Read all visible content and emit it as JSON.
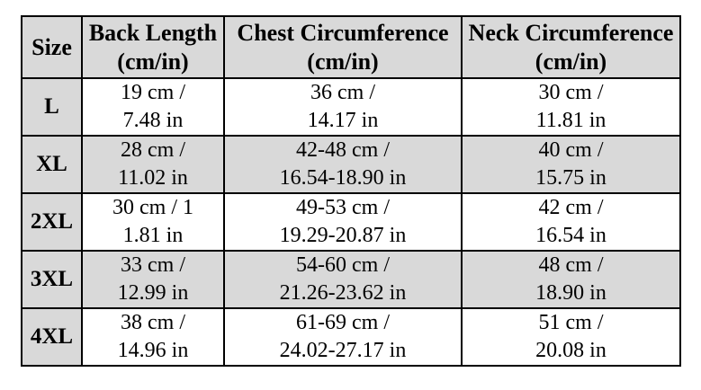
{
  "table": {
    "columns": [
      {
        "label": "Size",
        "unit": ""
      },
      {
        "label": "Back Length",
        "unit": "(cm/in)"
      },
      {
        "label": "Chest Circumference",
        "unit": "(cm/in)"
      },
      {
        "label": "Neck Circumference",
        "unit": "(cm/in)"
      }
    ],
    "rows": [
      {
        "size": "L",
        "back": {
          "line1": "19 cm /",
          "line2": "7.48 in"
        },
        "chest": {
          "line1": "36 cm /",
          "line2": "14.17 in"
        },
        "neck": {
          "line1": "30 cm /",
          "line2": "11.81 in"
        }
      },
      {
        "size": "XL",
        "back": {
          "line1": "28 cm /",
          "line2": "11.02 in"
        },
        "chest": {
          "line1": "42-48 cm /",
          "line2": "16.54-18.90 in"
        },
        "neck": {
          "line1": "40 cm /",
          "line2": "15.75 in"
        }
      },
      {
        "size": "2XL",
        "back": {
          "line1": "30 cm / 1",
          "line2": "1.81 in"
        },
        "chest": {
          "line1": "49-53 cm /",
          "line2": "19.29-20.87 in"
        },
        "neck": {
          "line1": "42 cm /",
          "line2": "16.54 in"
        }
      },
      {
        "size": "3XL",
        "back": {
          "line1": "33 cm /",
          "line2": "12.99 in"
        },
        "chest": {
          "line1": "54-60 cm /",
          "line2": "21.26-23.62 in"
        },
        "neck": {
          "line1": "48 cm /",
          "line2": "18.90 in"
        }
      },
      {
        "size": "4XL",
        "back": {
          "line1": "38 cm /",
          "line2": "14.96 in"
        },
        "chest": {
          "line1": "61-69 cm /",
          "line2": "24.02-27.17 in"
        },
        "neck": {
          "line1": "51 cm /",
          "line2": "20.08 in"
        }
      }
    ]
  },
  "colors": {
    "shaded_bg": "#d9d9d9",
    "row_bg": "#ffffff",
    "border": "#000000",
    "text": "#000000"
  }
}
